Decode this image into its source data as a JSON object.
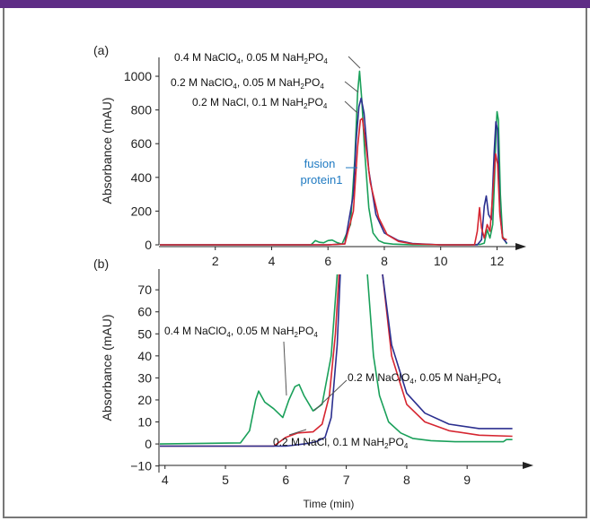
{
  "header": {
    "bar_color": "#5e2d86"
  },
  "chart_data": [
    {
      "panel_label": "(a)",
      "type": "line",
      "xlabel": "",
      "ylabel": "Absorbance (mAU)",
      "xlim": [
        0,
        12.4
      ],
      "ylim": [
        0,
        1080
      ],
      "xticks": [
        2,
        4,
        6,
        8,
        10,
        12
      ],
      "yticks": [
        0,
        200,
        400,
        600,
        800,
        1000
      ],
      "series": [
        {
          "name": "0.4 M NaClO4, 0.05 M NaH2PO4",
          "color": "#1aa05a",
          "x": [
            0,
            5.4,
            5.55,
            5.7,
            5.85,
            6.0,
            6.15,
            6.3,
            6.5,
            6.8,
            6.95,
            7.05,
            7.12,
            7.2,
            7.3,
            7.45,
            7.6,
            7.8,
            8.0,
            8.3,
            8.6,
            9.0,
            10.0,
            11.0,
            11.4,
            11.55,
            11.65,
            11.75,
            11.85,
            11.92,
            11.97,
            12.0,
            12.05,
            12.12,
            12.2,
            12.35
          ],
          "y": [
            0,
            0,
            25,
            15,
            12,
            25,
            28,
            15,
            4,
            120,
            500,
            900,
            1030,
            860,
            560,
            220,
            70,
            25,
            10,
            4,
            2,
            0,
            0,
            0,
            2,
            10,
            90,
            40,
            120,
            420,
            700,
            790,
            740,
            300,
            50,
            5
          ]
        },
        {
          "name": "0.2 M NaClO4, 0.05 M NaH2PO4",
          "color": "#2b2f8f",
          "x": [
            0,
            6.0,
            6.6,
            6.9,
            7.0,
            7.1,
            7.18,
            7.28,
            7.45,
            7.7,
            8.0,
            8.5,
            9.0,
            10.0,
            11.3,
            11.45,
            11.55,
            11.62,
            11.7,
            11.8,
            11.9,
            11.96,
            12.02,
            12.1,
            12.2,
            12.35
          ],
          "y": [
            0,
            0,
            6,
            300,
            620,
            820,
            870,
            780,
            440,
            180,
            70,
            25,
            8,
            0,
            0,
            30,
            230,
            290,
            180,
            150,
            550,
            730,
            680,
            200,
            40,
            10
          ]
        },
        {
          "name": "0.2 M NaCl, 0.1 M NaH2PO4",
          "color": "#d62631",
          "x": [
            0,
            6.0,
            6.6,
            6.9,
            7.05,
            7.15,
            7.22,
            7.3,
            7.5,
            7.8,
            8.1,
            8.5,
            9.0,
            10.0,
            11.2,
            11.3,
            11.38,
            11.45,
            11.55,
            11.65,
            11.75,
            11.85,
            11.95,
            12.02,
            12.1,
            12.2,
            12.35
          ],
          "y": [
            0,
            0,
            5,
            200,
            580,
            740,
            750,
            650,
            370,
            160,
            60,
            20,
            6,
            0,
            0,
            80,
            220,
            100,
            40,
            120,
            80,
            300,
            540,
            480,
            180,
            40,
            30
          ]
        }
      ],
      "labels": [
        {
          "text": "0.4 M NaClO",
          "sub1": "4",
          "mid": ", 0.05 M NaH",
          "sub2": "2",
          "end": "PO",
          "sub3": "4"
        },
        {
          "text": "0.2 M NaClO",
          "sub1": "4",
          "mid": ", 0.05 M NaH",
          "sub2": "2",
          "end": "PO",
          "sub3": "4"
        },
        {
          "text": "0.2 M NaCl, 0.1 M NaH",
          "sub1": "2",
          "mid": "PO",
          "sub2": "4",
          "end": "",
          "sub3": ""
        }
      ],
      "annotation": {
        "line1": "fusion",
        "line2": "protein1",
        "color": "#1f7ac2"
      }
    },
    {
      "panel_label": "(b)",
      "type": "line",
      "xlabel": "Time (min)",
      "ylabel": "Absorbance (mAU)",
      "xlim": [
        3.9,
        9.8
      ],
      "ylim": [
        -13,
        77
      ],
      "xticks": [
        4,
        5,
        6,
        7,
        8,
        9
      ],
      "yticks": [
        -10,
        0,
        10,
        20,
        30,
        40,
        50,
        60,
        70
      ],
      "series": [
        {
          "name": "0.4 M NaClO4, 0.05 M NaH2PO4",
          "color": "#1aa05a",
          "segments": [
            {
              "x": [
                3.9,
                5.25,
                5.4,
                5.5,
                5.55,
                5.65,
                5.8,
                5.95,
                6.05,
                6.15,
                6.22,
                6.3,
                6.45,
                6.6,
                6.75,
                6.85
              ],
              "y": [
                0,
                0.5,
                6,
                20,
                24,
                19,
                16,
                12,
                20,
                26,
                27,
                22,
                15,
                18,
                40,
                77
              ]
            },
            {
              "x": [
                7.35,
                7.45,
                7.55,
                7.7,
                7.9,
                8.1,
                8.4,
                8.8,
                9.2,
                9.6,
                9.65,
                9.75
              ],
              "y": [
                77,
                40,
                22,
                10,
                5,
                2.5,
                1.5,
                1,
                1,
                1,
                2,
                2
              ]
            }
          ]
        },
        {
          "name": "0.2 M NaClO4, 0.05 M NaH2PO4",
          "color": "#d62631",
          "segments": [
            {
              "x": [
                3.9,
                5.8,
                6.0,
                6.2,
                6.45,
                6.6,
                6.72,
                6.82,
                6.88
              ],
              "y": [
                -1,
                -1,
                3,
                5,
                5.5,
                9,
                22,
                50,
                77
              ]
            },
            {
              "x": [
                7.6,
                7.75,
                8.0,
                8.3,
                8.7,
                9.2,
                9.75
              ],
              "y": [
                77,
                40,
                18,
                10,
                6,
                4,
                3.5
              ]
            }
          ]
        },
        {
          "name": "0.2 M NaCl, 0.1 M NaH2PO4",
          "color": "#2b2f8f",
          "segments": [
            {
              "x": [
                3.9,
                6.0,
                6.3,
                6.5,
                6.65,
                6.75,
                6.85,
                6.9
              ],
              "y": [
                -1,
                -1,
                0,
                1,
                3,
                12,
                45,
                77
              ]
            },
            {
              "x": [
                7.6,
                7.75,
                8.0,
                8.3,
                8.7,
                9.2,
                9.75
              ],
              "y": [
                77,
                45,
                23,
                14,
                9,
                7,
                7
              ]
            }
          ]
        }
      ],
      "labels": [
        {
          "text": "0.4 M NaClO",
          "sub1": "4",
          "mid": ", 0.05 M NaH",
          "sub2": "2",
          "end": "PO",
          "sub3": "4"
        },
        {
          "text": "0.2 M NaClO",
          "sub1": "4",
          "mid": ", 0.05 M NaH",
          "sub2": "2",
          "end": "PO",
          "sub3": "4"
        },
        {
          "text": "0.2 M NaCl, 0.1 M NaH",
          "sub1": "2",
          "mid": "PO",
          "sub2": "4",
          "end": "",
          "sub3": ""
        }
      ]
    }
  ]
}
